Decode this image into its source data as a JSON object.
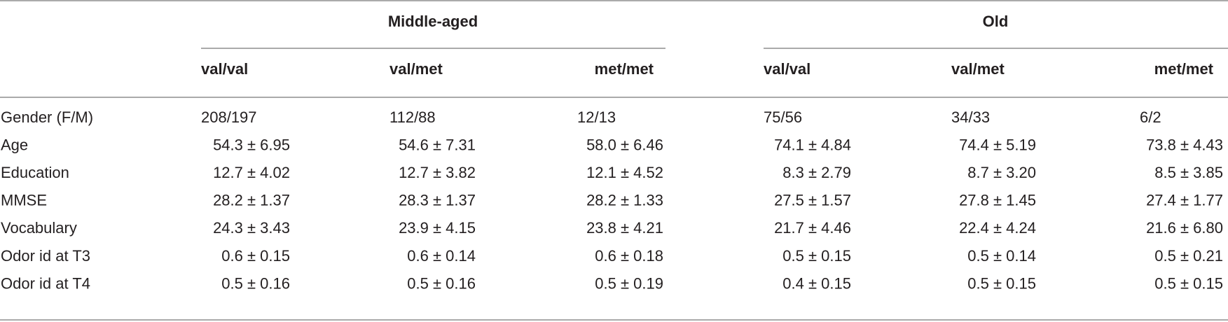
{
  "table": {
    "groups": [
      "Middle-aged",
      "Old"
    ],
    "columns": [
      "val/val",
      "val/met",
      "met/met",
      "val/val",
      "val/met",
      "met/met"
    ],
    "rows": [
      {
        "label": "Gender (F/M)",
        "cells": [
          "208/197",
          "112/88",
          "12/13",
          "75/56",
          "34/33",
          "6/2"
        ]
      },
      {
        "label": "Age",
        "cells": [
          "54.3 ± 6.95",
          "54.6 ± 7.31",
          "58.0 ± 6.46",
          "74.1 ± 4.84",
          "74.4 ± 5.19",
          "73.8 ± 4.43"
        ]
      },
      {
        "label": "Education",
        "cells": [
          "12.7 ± 4.02",
          "12.7 ± 3.82",
          "12.1 ± 4.52",
          "8.3 ± 2.79",
          "8.7 ± 3.20",
          "8.5 ± 3.85"
        ]
      },
      {
        "label": "MMSE",
        "cells": [
          "28.2 ± 1.37",
          "28.3 ± 1.37",
          "28.2 ± 1.33",
          "27.5 ± 1.57",
          "27.8 ± 1.45",
          "27.4 ± 1.77"
        ]
      },
      {
        "label": "Vocabulary",
        "cells": [
          "24.3 ± 3.43",
          "23.9 ± 4.15",
          "23.8 ± 4.21",
          "21.7 ± 4.46",
          "22.4 ± 4.24",
          "21.6 ± 6.80"
        ]
      },
      {
        "label": "Odor id at T3",
        "cells": [
          "0.6 ± 0.15",
          "0.6 ± 0.14",
          "0.6 ± 0.18",
          "0.5 ± 0.15",
          "0.5 ± 0.14",
          "0.5 ± 0.21"
        ]
      },
      {
        "label": "Odor id at T4",
        "cells": [
          "0.5 ± 0.16",
          "0.5 ± 0.16",
          "0.5 ± 0.19",
          "0.4 ± 0.15",
          "0.5 ± 0.15",
          "0.5 ± 0.15"
        ]
      }
    ]
  }
}
